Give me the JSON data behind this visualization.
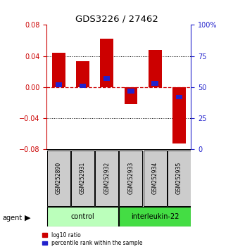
{
  "title": "GDS3226 / 27462",
  "samples": [
    "GSM252890",
    "GSM252931",
    "GSM252932",
    "GSM252933",
    "GSM252934",
    "GSM252935"
  ],
  "log10_ratio": [
    0.044,
    0.033,
    0.062,
    -0.022,
    0.048,
    -0.072
  ],
  "percentile_rank": [
    52,
    51,
    57,
    47,
    53,
    42
  ],
  "ylim": [
    -0.08,
    0.08
  ],
  "yticks_left": [
    -0.08,
    -0.04,
    0,
    0.04,
    0.08
  ],
  "yticks_right": [
    0,
    25,
    50,
    75,
    100
  ],
  "bar_color": "#cc0000",
  "blue_color": "#2222cc",
  "control_color": "#bbffbb",
  "interleukin_color": "#44dd44",
  "border_color": "#000000",
  "sample_box_color": "#cccccc",
  "title_color": "#000000",
  "left_axis_color": "#cc0000",
  "right_axis_color": "#2222cc",
  "zero_line_color": "#cc0000",
  "grid_color": "#000000",
  "bar_width": 0.55,
  "figsize": [
    3.31,
    3.54
  ],
  "dpi": 100
}
